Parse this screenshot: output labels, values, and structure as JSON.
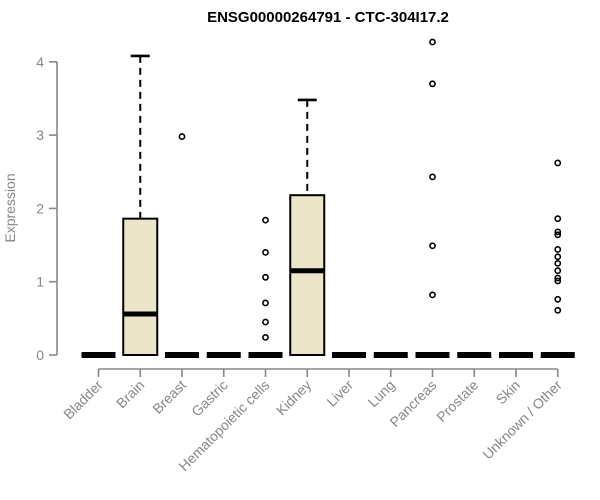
{
  "chart_data": {
    "type": "boxplot",
    "title": "ENSG00000264791 - CTC-304I17.2",
    "ylabel": "Expression",
    "xlabel": "",
    "ylim": [
      0,
      4.4
    ],
    "yticks": [
      0,
      1,
      2,
      3,
      4
    ],
    "grid": false,
    "legend": "none",
    "categories": [
      "Bladder",
      "Brain",
      "Breast",
      "Gastric",
      "Hematopoietic cells",
      "Kidney",
      "Liver",
      "Lung",
      "Pancreas",
      "Prostate",
      "Skin",
      "Unknown / Other"
    ],
    "boxes": [
      {
        "category": "Bladder",
        "q1": 0,
        "median": 0,
        "q3": 0,
        "whisker_low": 0,
        "whisker_high": 0,
        "outliers": []
      },
      {
        "category": "Brain",
        "q1": 0,
        "median": 0.56,
        "q3": 1.86,
        "whisker_low": 0,
        "whisker_high": 4.08,
        "outliers": []
      },
      {
        "category": "Breast",
        "q1": 0,
        "median": 0,
        "q3": 0,
        "whisker_low": 0,
        "whisker_high": 0,
        "outliers": [
          2.98
        ]
      },
      {
        "category": "Gastric",
        "q1": 0,
        "median": 0,
        "q3": 0,
        "whisker_low": 0,
        "whisker_high": 0,
        "outliers": []
      },
      {
        "category": "Hematopoietic cells",
        "q1": 0,
        "median": 0,
        "q3": 0,
        "whisker_low": 0,
        "whisker_high": 0,
        "outliers": [
          1.84,
          1.4,
          1.06,
          0.71,
          0.45,
          0.24
        ]
      },
      {
        "category": "Kidney",
        "q1": 0,
        "median": 1.15,
        "q3": 2.18,
        "whisker_low": 0,
        "whisker_high": 3.48,
        "outliers": []
      },
      {
        "category": "Liver",
        "q1": 0,
        "median": 0,
        "q3": 0,
        "whisker_low": 0,
        "whisker_high": 0,
        "outliers": []
      },
      {
        "category": "Lung",
        "q1": 0,
        "median": 0,
        "q3": 0,
        "whisker_low": 0,
        "whisker_high": 0,
        "outliers": []
      },
      {
        "category": "Pancreas",
        "q1": 0,
        "median": 0,
        "q3": 0,
        "whisker_low": 0,
        "whisker_high": 0,
        "outliers": [
          4.27,
          3.7,
          2.43,
          1.49,
          0.82
        ]
      },
      {
        "category": "Prostate",
        "q1": 0,
        "median": 0,
        "q3": 0,
        "whisker_low": 0,
        "whisker_high": 0,
        "outliers": []
      },
      {
        "category": "Skin",
        "q1": 0,
        "median": 0,
        "q3": 0,
        "whisker_low": 0,
        "whisker_high": 0,
        "outliers": []
      },
      {
        "category": "Unknown / Other",
        "q1": 0,
        "median": 0,
        "q3": 0,
        "whisker_low": 0,
        "whisker_high": 0,
        "outliers": [
          2.62,
          1.86,
          1.68,
          1.64,
          1.44,
          1.34,
          1.25,
          1.15,
          1.05,
          1.01,
          0.76,
          0.61
        ]
      }
    ],
    "style": {
      "box_fill": "#ece5c9",
      "box_stroke": "#000000",
      "median_color": "#000000",
      "whisker_color": "#000000",
      "outlier_color": "#000000",
      "axis_color": "#878787",
      "tick_label_color": "#878787",
      "title_color": "#000000",
      "background": "#ffffff"
    }
  }
}
